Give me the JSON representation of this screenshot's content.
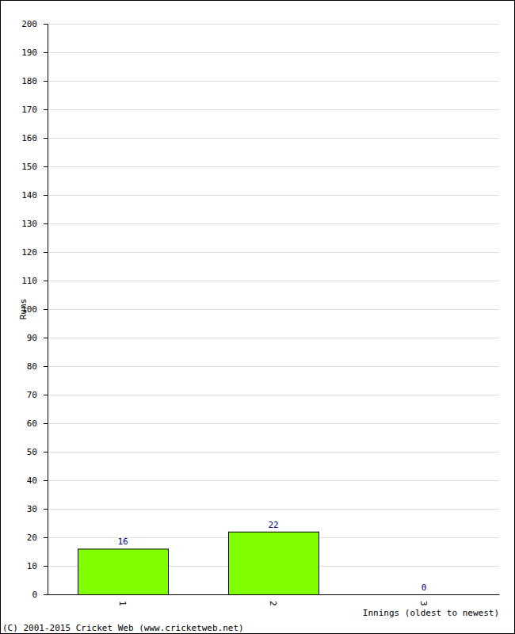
{
  "chart_data": {
    "type": "bar",
    "y_label": "Runs",
    "x_label": "Innings (oldest to newest)",
    "annotations": [
      "(C) 2001-2015 Cricket Web (www.cricketweb.net)"
    ],
    "categories": [
      "1",
      "2",
      "3"
    ],
    "values": [
      16,
      22,
      0
    ],
    "color": "#80ff00",
    "ylim": [
      0,
      200
    ],
    "yticks": [
      0,
      10,
      20,
      30,
      40,
      50,
      60,
      70,
      80,
      90,
      100,
      110,
      120,
      130,
      140,
      150,
      160,
      170,
      180,
      190,
      200
    ],
    "grid": true,
    "data_labels": true
  }
}
